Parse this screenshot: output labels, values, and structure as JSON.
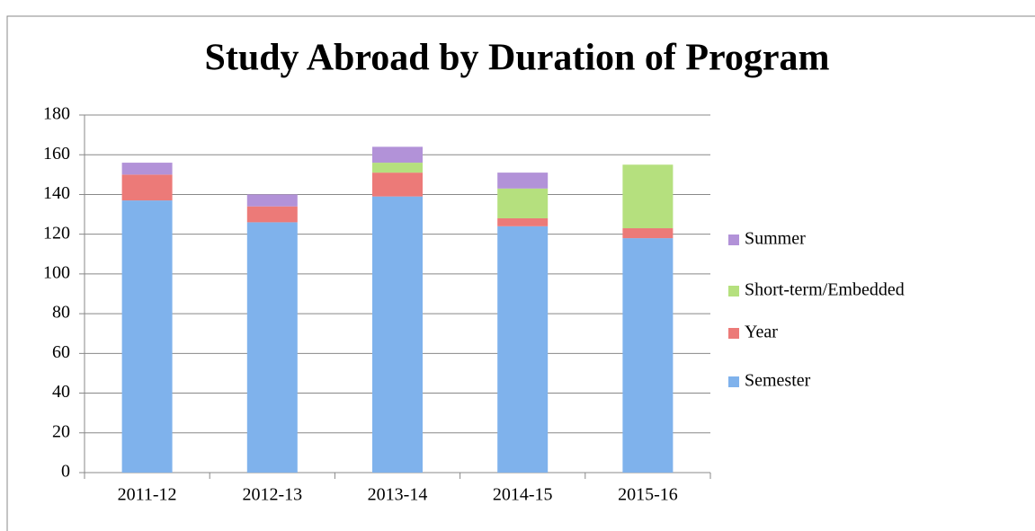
{
  "chart_data": {
    "type": "stacked_bar",
    "title": "Study Abroad by Duration of Program",
    "categories": [
      "2011-12",
      "2012-13",
      "2013-14",
      "2014-15",
      "2015-16"
    ],
    "series": [
      {
        "name": "Semester",
        "color": "#7fb2ec",
        "values": [
          137,
          126,
          139,
          124,
          118
        ]
      },
      {
        "name": "Year",
        "color": "#ec7a78",
        "values": [
          13,
          8,
          12,
          4,
          5
        ]
      },
      {
        "name": "Short-term/Embedded",
        "color": "#b5e07e",
        "values": [
          0,
          0,
          5,
          15,
          32
        ]
      },
      {
        "name": "Summer",
        "color": "#b292d8",
        "values": [
          6,
          6,
          8,
          8,
          0
        ]
      }
    ],
    "ylim": [
      0,
      180
    ],
    "yticks": [
      0,
      20,
      40,
      60,
      80,
      100,
      120,
      140,
      160,
      180
    ],
    "grid": true,
    "legend": "right"
  }
}
